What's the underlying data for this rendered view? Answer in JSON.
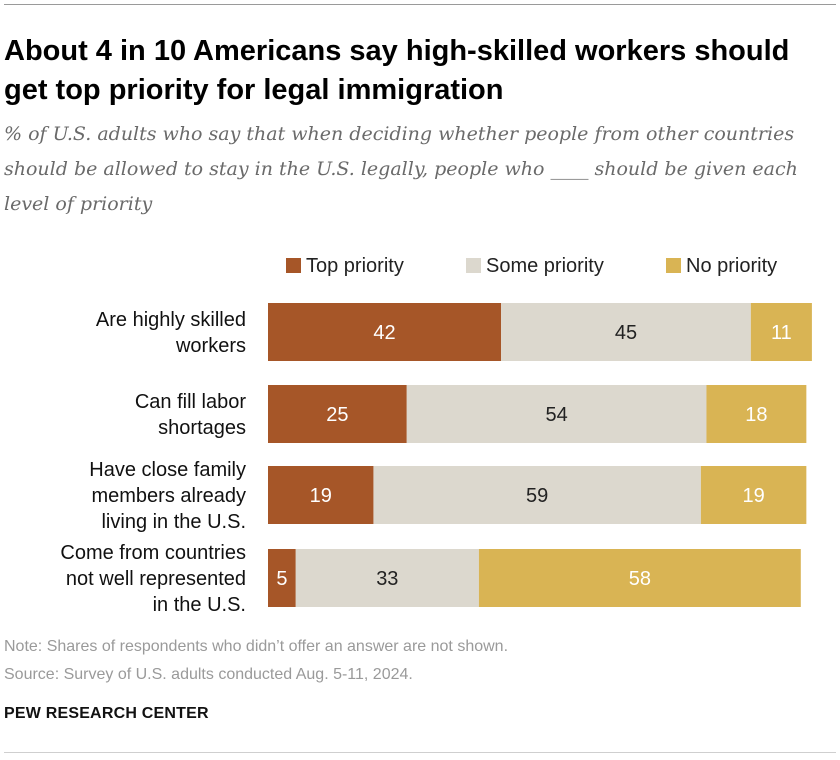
{
  "title": "About 4 in 10 Americans say high-skilled workers should get top priority for legal immigration",
  "subtitle": "% of U.S. adults who say that when deciding whether people from other countries should be allowed to stay in the U.S. legally, people who ____ should be given each level of priority",
  "note": "Note: Shares of respondents who didn’t offer an answer are not shown.",
  "source": "Source: Survey of U.S. adults conducted Aug. 5-11, 2024.",
  "org": "PEW RESEARCH CENTER",
  "chart_data": {
    "type": "bar",
    "orientation": "horizontal",
    "stacked": true,
    "categories": [
      [
        "Are highly skilled",
        "workers"
      ],
      [
        "Can fill labor",
        "shortages"
      ],
      [
        "Have close family",
        "members already",
        "living in the U.S."
      ],
      [
        "Come from countries",
        "not well represented",
        "in the U.S."
      ]
    ],
    "series": [
      {
        "name": "Top priority",
        "color": "#a65628",
        "text_color": "#ffffff",
        "values": [
          42,
          25,
          19,
          5
        ]
      },
      {
        "name": "Some priority",
        "color": "#dcd8ce",
        "text_color": "#222222",
        "values": [
          45,
          54,
          59,
          33
        ]
      },
      {
        "name": "No priority",
        "color": "#d9b454",
        "text_color": "#ffffff",
        "values": [
          11,
          18,
          19,
          58
        ]
      }
    ],
    "legend_position": "top",
    "grid": false,
    "xlim": [
      0,
      100
    ]
  }
}
